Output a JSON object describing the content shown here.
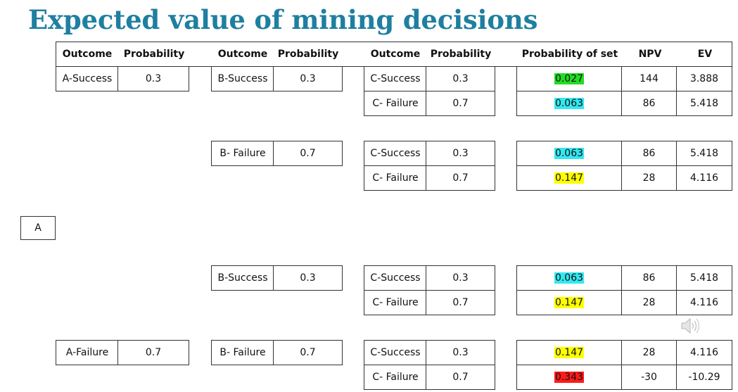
{
  "title": "Expected value of mining decisions",
  "headers": {
    "outcome": "Outcome",
    "probability": "Probability",
    "prob_set": "Probability of set",
    "npv": "NPV",
    "ev": "EV"
  },
  "root_label": "A",
  "a_nodes": [
    {
      "outcome": "A-Success",
      "probability": "0.3"
    },
    {
      "outcome": "A-Failure",
      "probability": "0.7"
    }
  ],
  "b_nodes": [
    {
      "outcome": "B-Success",
      "probability": "0.3"
    },
    {
      "outcome": "B- Failure",
      "probability": "0.7"
    },
    {
      "outcome": "B-Success",
      "probability": "0.3"
    },
    {
      "outcome": "B- Failure",
      "probability": "0.7"
    }
  ],
  "c_rows": [
    {
      "outcome": "C-Success",
      "probability": "0.3",
      "prob_set": "0.027",
      "npv": "144",
      "ev": "3.888",
      "highlight": "#22dd22"
    },
    {
      "outcome": "C- Failure",
      "probability": "0.7",
      "prob_set": "0.063",
      "npv": "86",
      "ev": "5.418",
      "highlight": "#33e8f0"
    },
    {
      "outcome": "C-Success",
      "probability": "0.3",
      "prob_set": "0.063",
      "npv": "86",
      "ev": "5.418",
      "highlight": "#33e8f0"
    },
    {
      "outcome": "C- Failure",
      "probability": "0.7",
      "prob_set": "0.147",
      "npv": "28",
      "ev": "4.116",
      "highlight": "#ffff00"
    },
    {
      "outcome": "C-Success",
      "probability": "0.3",
      "prob_set": "0.063",
      "npv": "86",
      "ev": "5.418",
      "highlight": "#33e8f0"
    },
    {
      "outcome": "C- Failure",
      "probability": "0.7",
      "prob_set": "0.147",
      "npv": "28",
      "ev": "4.116",
      "highlight": "#ffff00"
    },
    {
      "outcome": "C-Success",
      "probability": "0.3",
      "prob_set": "0.147",
      "npv": "28",
      "ev": "4.116",
      "highlight": "#ffff00"
    },
    {
      "outcome": "C- Failure",
      "probability": "0.7",
      "prob_set": "0.343",
      "npv": "-30",
      "ev": "-10.29",
      "highlight": "#ff1a1a"
    }
  ],
  "icons": {
    "audio": "speaker-icon"
  }
}
